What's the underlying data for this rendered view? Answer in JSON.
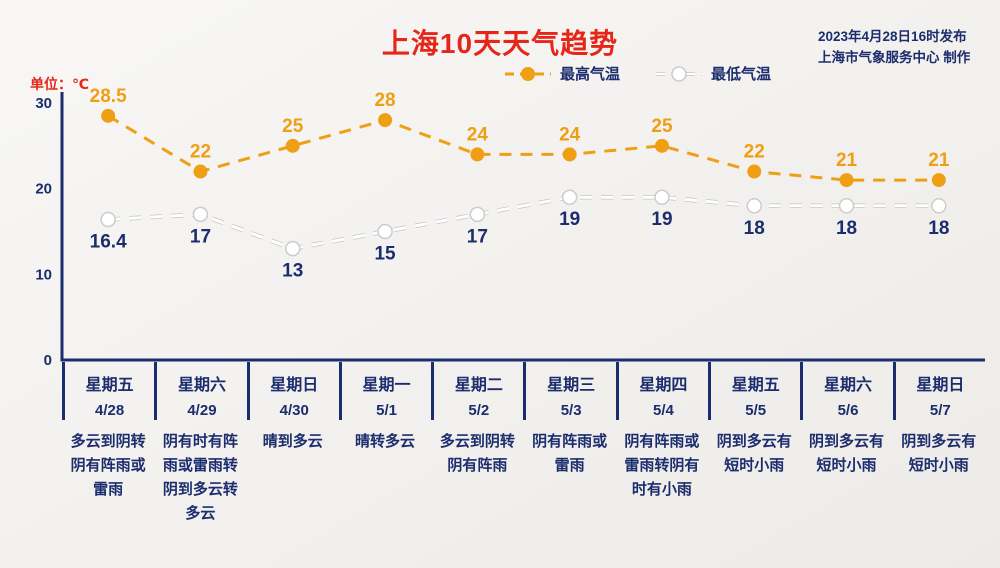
{
  "header": {
    "title": "上海10天天气趋势",
    "published": "2023年4月28日16时发布",
    "producer": "上海市气象服务中心 制作"
  },
  "unit_label": "单位：℃",
  "legend": {
    "max_label": "最高气温",
    "min_label": "最低气温"
  },
  "colors": {
    "navy": "#1c2d6e",
    "orange": "#ef9f14",
    "red": "#e62619",
    "white": "#ffffff",
    "min_dot_edge": "#cccccc",
    "min_line_shadow": "#c4c4c4"
  },
  "chart_data": {
    "type": "line",
    "title": "上海10天天气趋势",
    "ylabel": "℃",
    "ylim": [
      0,
      30
    ],
    "yticks": [
      0,
      10,
      20,
      30
    ],
    "grid": false,
    "legend_position": "top",
    "categories_day": [
      "星期五",
      "星期六",
      "星期日",
      "星期一",
      "星期二",
      "星期三",
      "星期四",
      "星期五",
      "星期六",
      "星期日"
    ],
    "categories_date": [
      "4/28",
      "4/29",
      "4/30",
      "5/1",
      "5/2",
      "5/3",
      "5/4",
      "5/5",
      "5/6",
      "5/7"
    ],
    "series": [
      {
        "name": "最高气温",
        "color": "#ef9f14",
        "style": "dashed",
        "values": [
          28.5,
          22,
          25,
          28,
          24,
          24,
          25,
          22,
          21,
          21
        ]
      },
      {
        "name": "最低气温",
        "color": "#ffffff",
        "style": "dashed",
        "values": [
          16.4,
          17,
          13,
          15,
          17,
          19,
          19,
          18,
          18,
          18
        ]
      }
    ],
    "weather": [
      "多云到阴转阴有阵雨或雷雨",
      "阴有时有阵雨或雷雨转阴到多云转多云",
      "晴到多云",
      "晴转多云",
      "多云到阴转阴有阵雨",
      "阴有阵雨或雷雨",
      "阴有阵雨或雷雨转阴有时有小雨",
      "阴到多云有短时小雨",
      "阴到多云有短时小雨",
      "阴到多云有短时小雨"
    ]
  }
}
